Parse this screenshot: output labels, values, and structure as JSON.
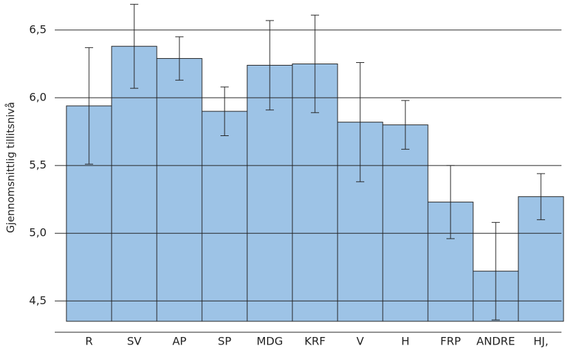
{
  "chart_data": {
    "type": "bar",
    "y_label": "Gjennomsnittlig tillitsnivå",
    "categories": [
      "R",
      "SV",
      "AP",
      "SP",
      "MDG",
      "KRF",
      "V",
      "H",
      "FRP",
      "ANDRE",
      "HJ,"
    ],
    "values": [
      5.94,
      6.38,
      6.29,
      5.9,
      6.24,
      6.25,
      5.82,
      5.8,
      5.23,
      4.72,
      5.27
    ],
    "errors": [
      0.43,
      0.31,
      0.16,
      0.18,
      0.33,
      0.36,
      0.44,
      0.18,
      0.27,
      0.36,
      0.17
    ],
    "color": "#9dc3e6",
    "ylim": [
      4.35,
      6.7
    ],
    "yticks": [
      {
        "value": 4.5,
        "label": "4,5"
      },
      {
        "value": 5.0,
        "label": "5,0"
      },
      {
        "value": 5.5,
        "label": "5,5"
      },
      {
        "value": 6.0,
        "label": "6,0"
      },
      {
        "value": 6.5,
        "label": "6,5"
      }
    ],
    "grid": true
  }
}
